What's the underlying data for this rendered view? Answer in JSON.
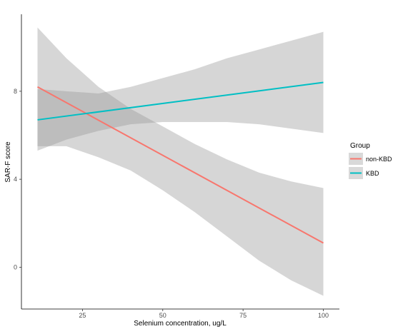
{
  "chart_data": {
    "type": "line",
    "title": "",
    "xlabel": "Selenium concentration, ug/L",
    "ylabel": "SAR-F score",
    "xlim": [
      6,
      105
    ],
    "ylim": [
      -1.9,
      11.5
    ],
    "xticks": [
      25,
      50,
      75,
      100
    ],
    "yticks": [
      0,
      4,
      8
    ],
    "grid": false,
    "legend": {
      "title": "Group",
      "placement": "right"
    },
    "series": [
      {
        "name": "non-KBD",
        "color": "#F8766D",
        "x": [
          11,
          100
        ],
        "y": [
          8.2,
          1.1
        ],
        "ci_x": [
          11,
          20,
          30,
          40,
          50,
          60,
          70,
          80,
          90,
          100
        ],
        "ci_upper": [
          10.9,
          9.5,
          8.2,
          7.2,
          6.4,
          5.6,
          4.9,
          4.3,
          3.9,
          3.6
        ],
        "ci_lower": [
          5.5,
          5.5,
          5.0,
          4.4,
          3.5,
          2.5,
          1.4,
          0.3,
          -0.6,
          -1.3
        ]
      },
      {
        "name": "KBD",
        "color": "#00BFC4",
        "x": [
          11,
          100
        ],
        "y": [
          6.7,
          8.4
        ],
        "ci_x": [
          11,
          20,
          30,
          40,
          50,
          60,
          70,
          80,
          90,
          100
        ],
        "ci_upper": [
          8.1,
          8.0,
          7.9,
          8.2,
          8.6,
          9.0,
          9.5,
          9.9,
          10.3,
          10.7
        ],
        "ci_lower": [
          5.3,
          5.8,
          6.2,
          6.5,
          6.6,
          6.6,
          6.6,
          6.5,
          6.3,
          6.1
        ]
      }
    ]
  },
  "colors": {
    "ci_band": "#999999",
    "legend_key_bg": "#d9d9d9",
    "axis": "#000000"
  }
}
